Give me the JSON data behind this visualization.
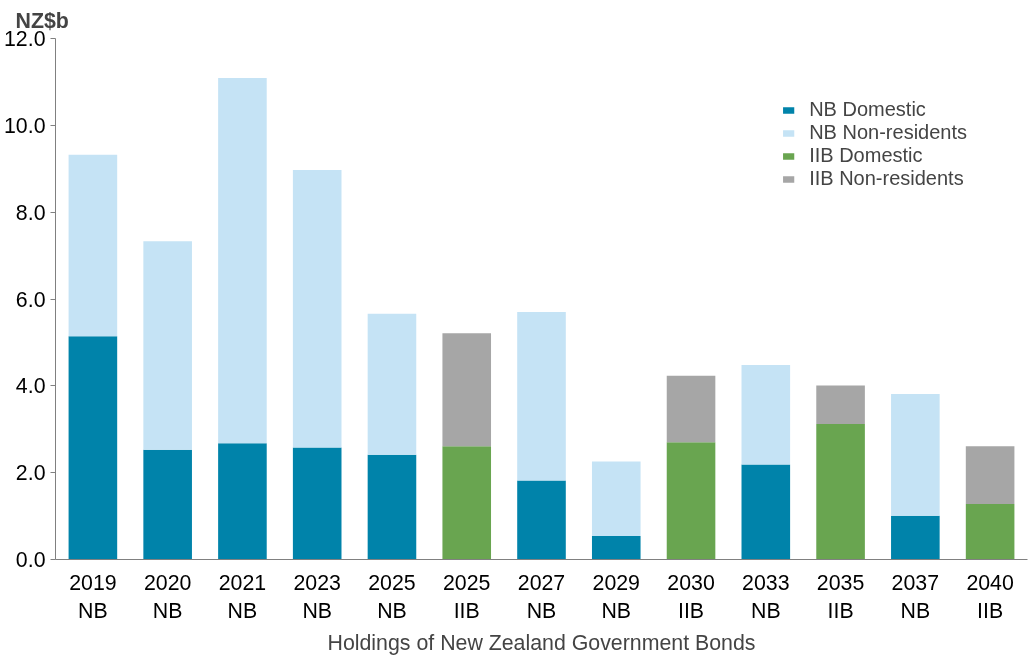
{
  "chart_data": {
    "type": "bar",
    "stacked": true,
    "ylabel": "NZ$b",
    "xlabel": "Holdings of New Zealand Government Bonds",
    "categories": [
      "2019\nNB",
      "2020\nNB",
      "2021\nNB",
      "2023\nNB",
      "2025\nNB",
      "2025\nIIB",
      "2027\nNB",
      "2029\nNB",
      "2030\nIIB",
      "2033\nNB",
      "2035\nIIB",
      "2037\nNB",
      "2040\nIIB"
    ],
    "series": [
      {
        "name": "NB Domestic",
        "color": "#0083aa",
        "values": [
          5.14,
          2.53,
          2.68,
          2.58,
          2.41,
          null,
          1.82,
          0.54,
          null,
          2.19,
          null,
          1.01,
          null
        ]
      },
      {
        "name": "NB Non-residents",
        "color": "#c5e3f5",
        "values": [
          4.18,
          4.8,
          8.41,
          6.39,
          3.25,
          null,
          3.88,
          1.72,
          null,
          2.29,
          null,
          2.8,
          null
        ]
      },
      {
        "name": "IIB Domestic",
        "color": "#69a550",
        "values": [
          null,
          null,
          null,
          null,
          null,
          2.61,
          null,
          null,
          2.7,
          null,
          3.12,
          null,
          1.28
        ]
      },
      {
        "name": "IIB Non-residents",
        "color": "#a6a6a6",
        "values": [
          null,
          null,
          null,
          null,
          null,
          2.6,
          null,
          null,
          1.53,
          null,
          0.89,
          null,
          1.33
        ]
      }
    ],
    "ylim": [
      0,
      12
    ],
    "yticks": [
      {
        "value": 0,
        "label": "0.0"
      },
      {
        "value": 2,
        "label": "2.0"
      },
      {
        "value": 4,
        "label": "4.0"
      },
      {
        "value": 6,
        "label": "6.0"
      },
      {
        "value": 8,
        "label": "8.0"
      },
      {
        "value": 10,
        "label": "10.0"
      },
      {
        "value": 12,
        "label": "12.0"
      }
    ],
    "grid": false,
    "legend": "top right"
  }
}
